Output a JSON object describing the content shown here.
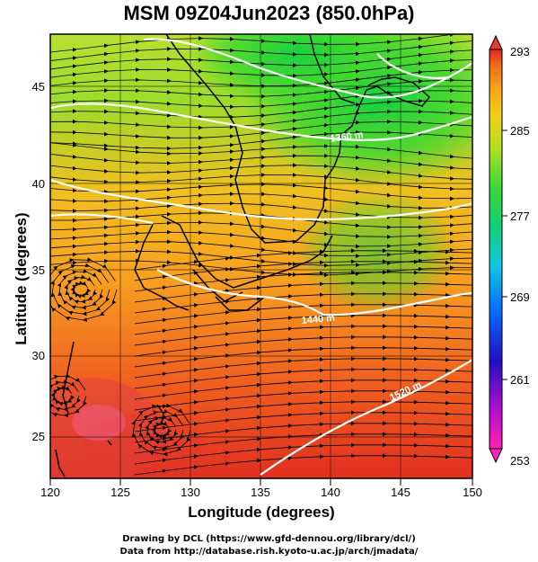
{
  "title": "MSM 09Z04Jun2023 (850.0hPa)",
  "axes": {
    "xlabel": "Longitude (degrees)",
    "ylabel": "Latitude  (degrees)",
    "xticks": [
      "120",
      "125",
      "130",
      "135",
      "140",
      "145",
      "150"
    ],
    "yticks": [
      "25",
      "30",
      "35",
      "40",
      "45"
    ],
    "xlim": [
      120,
      150
    ],
    "ylim": [
      22.4,
      47.6
    ]
  },
  "colorbar": {
    "labels": [
      "293",
      "285",
      "277",
      "269",
      "261",
      "253"
    ],
    "range": [
      253,
      293
    ],
    "colors": [
      "#ff2aa0",
      "#c015c8",
      "#3010c8",
      "#0a60ff",
      "#10c8e0",
      "#10d070",
      "#3ed83a",
      "#aee020",
      "#ecd018",
      "#f8a818",
      "#f46a1a",
      "#e03020"
    ]
  },
  "contours": [
    {
      "label": "1360 m",
      "pos": "upper-right"
    },
    {
      "label": "1440 m",
      "pos": "center"
    },
    {
      "label": "1520 m",
      "pos": "lower-right"
    }
  ],
  "credits": {
    "line1": "Drawing by DCL (https://www.gfd-dennou.org/library/dcl/)",
    "line2": "Data from http://database.rish.kyoto-u.ac.jp/arch/jmadata/"
  }
}
